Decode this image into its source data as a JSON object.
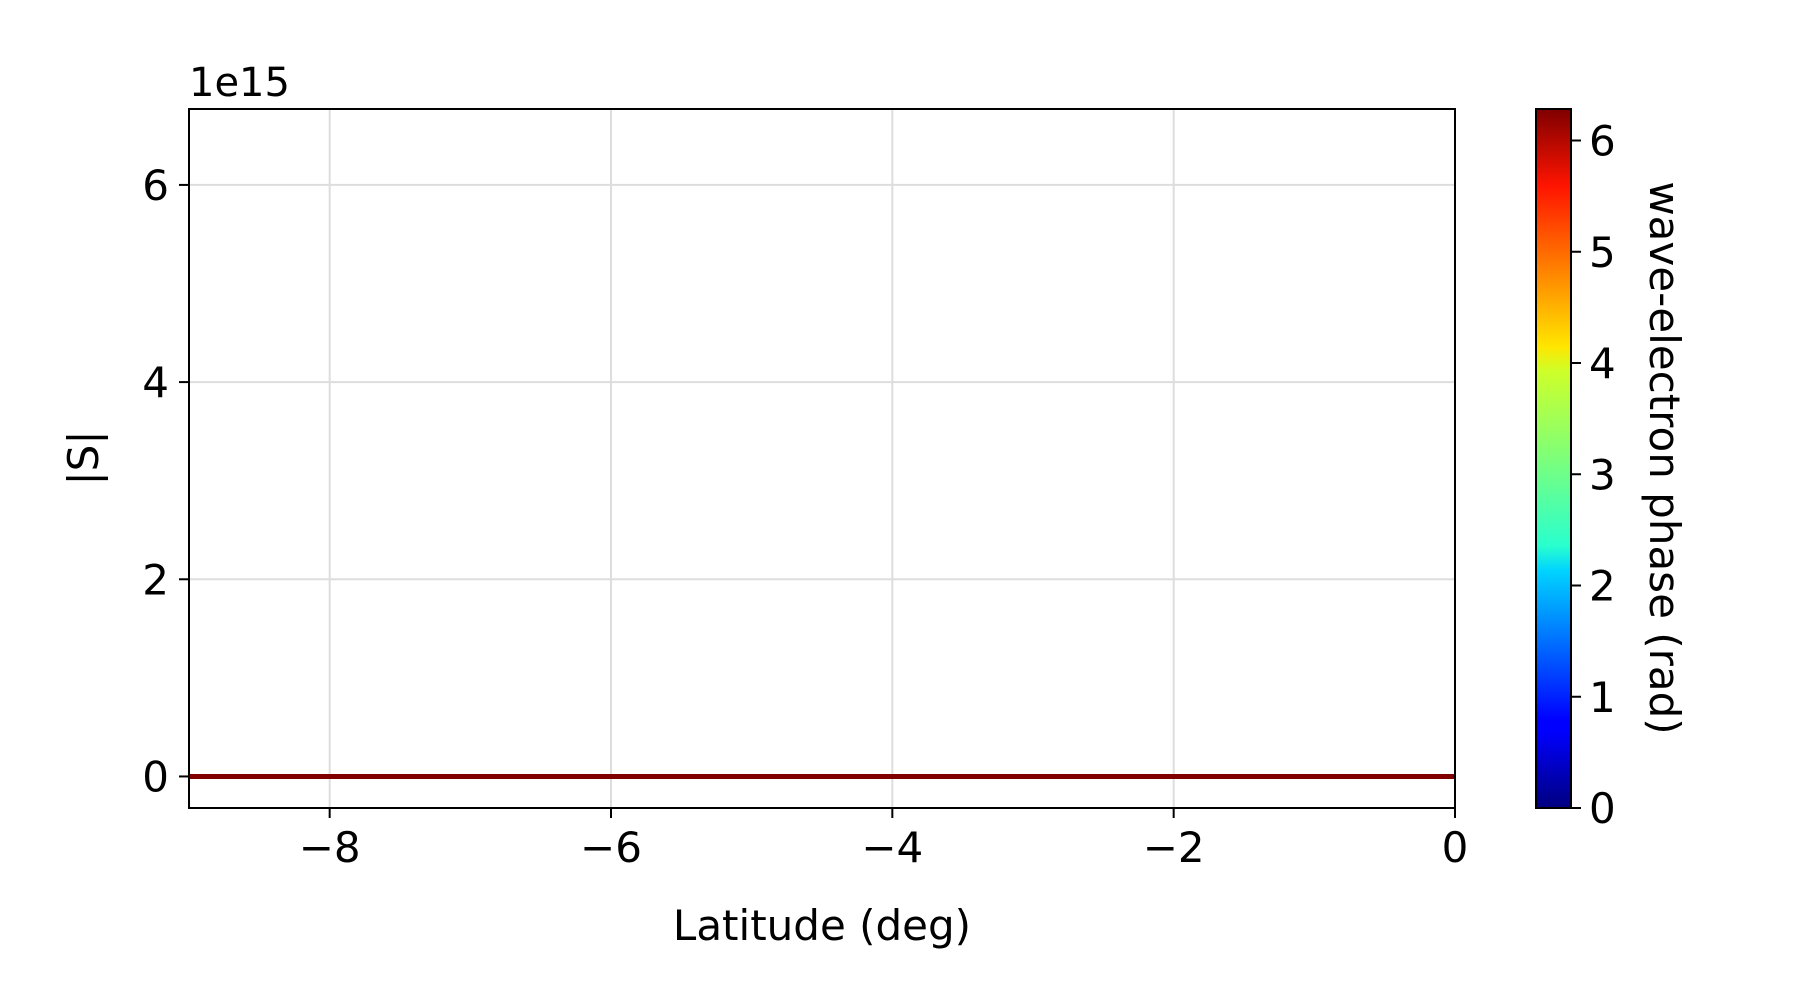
{
  "chart_data": {
    "type": "line",
    "title": "",
    "xlabel": "Latitude (deg)",
    "ylabel": "|S|",
    "y_offset_label": "1e15",
    "xlim": [
      -9,
      0
    ],
    "ylim": [
      -0.32,
      6.77
    ],
    "x_ticks": [
      -8,
      -6,
      -4,
      -2,
      0
    ],
    "x_tick_labels": [
      "−8",
      "−6",
      "−4",
      "−2",
      "0"
    ],
    "y_ticks": [
      0,
      2,
      4,
      6
    ],
    "y_tick_labels": [
      "0",
      "2",
      "4",
      "6"
    ],
    "grid": true,
    "series": [
      {
        "x": [
          -9,
          0
        ],
        "y": [
          0,
          0
        ],
        "color": "#800000"
      }
    ],
    "colorbar": {
      "label": "wave-electron phase (rad)",
      "colormap": "jet",
      "range": [
        0,
        6.2832
      ],
      "ticks": [
        0,
        1,
        2,
        3,
        4,
        5,
        6
      ],
      "tick_labels": [
        "0",
        "1",
        "2",
        "3",
        "4",
        "5",
        "6"
      ]
    }
  }
}
